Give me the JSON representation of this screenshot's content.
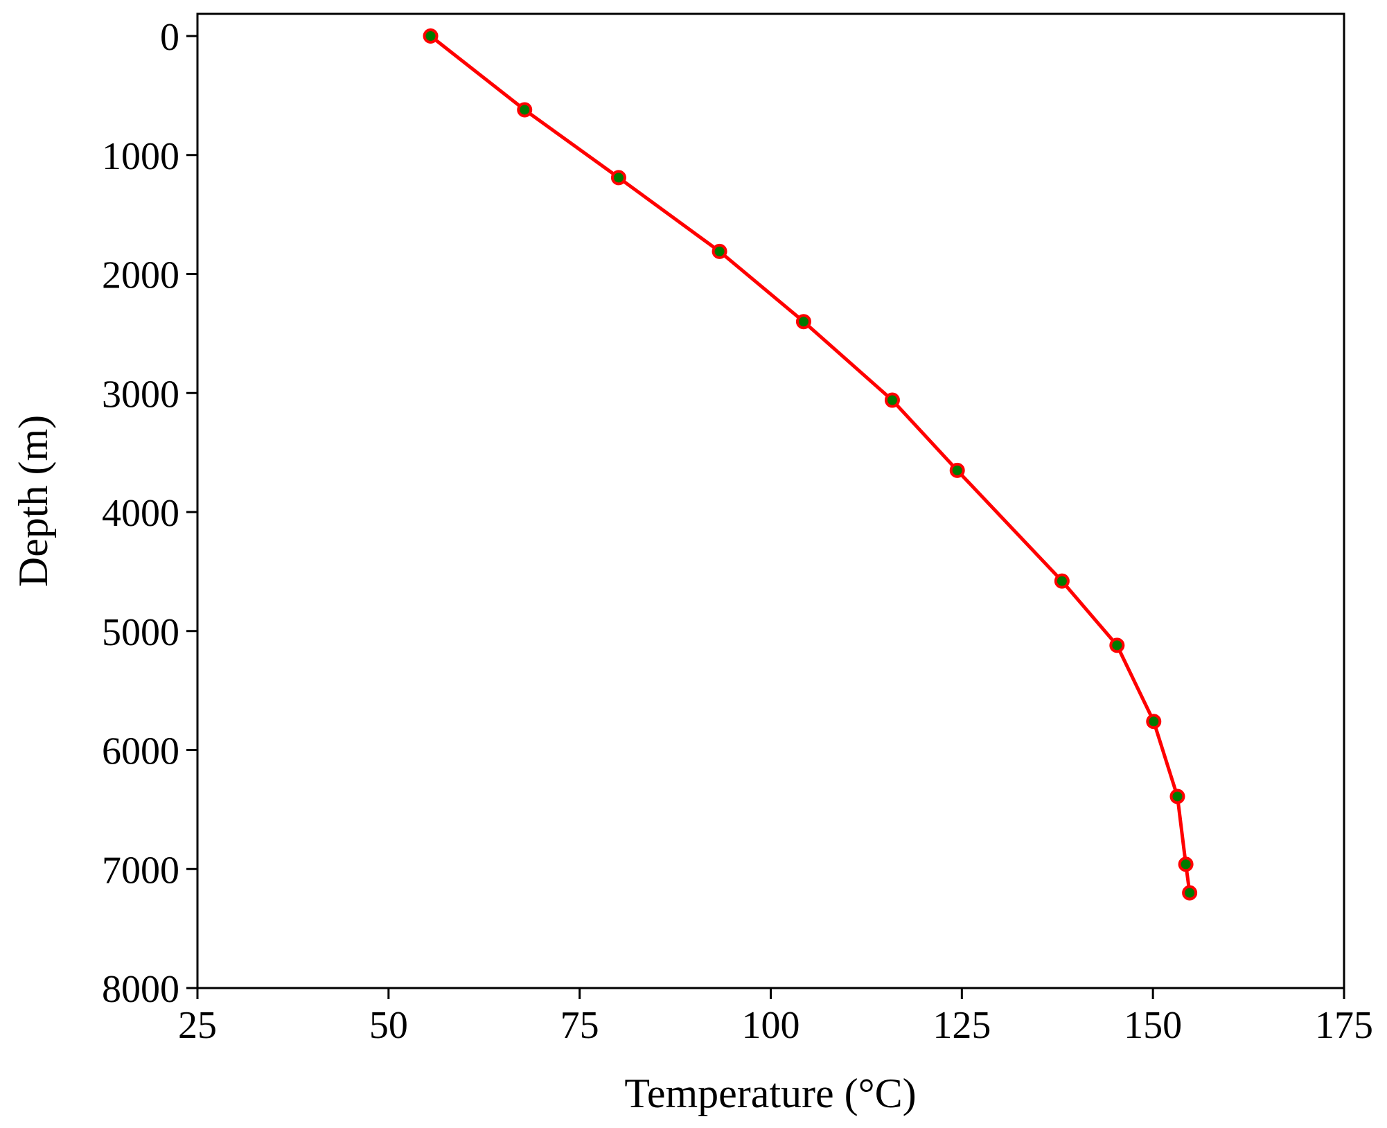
{
  "chart_data": {
    "type": "line",
    "title": "",
    "xlabel": "Temperature (°C)",
    "ylabel": "Depth (m)",
    "xlim": [
      25,
      175
    ],
    "ylim": [
      0,
      8000
    ],
    "y_inverted": true,
    "grid": false,
    "x_ticks": [
      "25",
      "50",
      "75",
      "100",
      "125",
      "150",
      "175"
    ],
    "y_ticks": [
      "0",
      "1000",
      "2000",
      "3000",
      "4000",
      "5000",
      "6000",
      "7000",
      "8000"
    ],
    "series": [
      {
        "line_color": "#ff0000",
        "marker_fill": "#007a00",
        "marker_edge": "#ff0000",
        "points": [
          {
            "x": 55.5,
            "y": 0
          },
          {
            "x": 67.8,
            "y": 620
          },
          {
            "x": 80.1,
            "y": 1190
          },
          {
            "x": 93.3,
            "y": 1810
          },
          {
            "x": 104.3,
            "y": 2400
          },
          {
            "x": 115.9,
            "y": 3060
          },
          {
            "x": 124.4,
            "y": 3650
          },
          {
            "x": 138.1,
            "y": 4580
          },
          {
            "x": 145.3,
            "y": 5120
          },
          {
            "x": 150.1,
            "y": 5760
          },
          {
            "x": 153.2,
            "y": 6390
          },
          {
            "x": 154.3,
            "y": 6960
          },
          {
            "x": 154.8,
            "y": 7200
          }
        ]
      }
    ]
  }
}
